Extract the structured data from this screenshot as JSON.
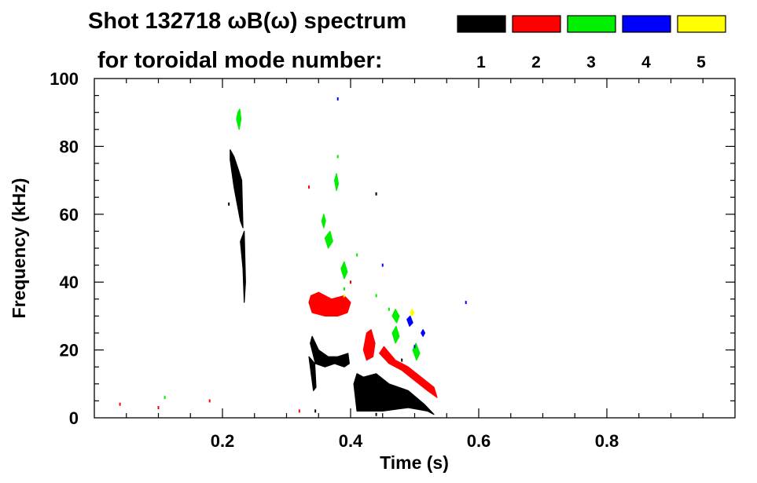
{
  "chart_data": {
    "type": "heatmap",
    "title": "Shot 132718 ωB(ω) spectrum",
    "subtitle": "for toroidal mode number:",
    "xlabel": "Time (s)",
    "ylabel": "Frequency (kHz)",
    "xlim": [
      0.0,
      1.0
    ],
    "ylim": [
      0,
      100
    ],
    "x_ticks": [
      {
        "value": 0.2,
        "label": "0.2"
      },
      {
        "value": 0.4,
        "label": "0.4"
      },
      {
        "value": 0.6,
        "label": "0.6"
      },
      {
        "value": 0.8,
        "label": "0.8"
      }
    ],
    "y_ticks": [
      {
        "value": 0,
        "label": "0"
      },
      {
        "value": 20,
        "label": "20"
      },
      {
        "value": 40,
        "label": "40"
      },
      {
        "value": 60,
        "label": "60"
      },
      {
        "value": 80,
        "label": "80"
      },
      {
        "value": 100,
        "label": "100"
      }
    ],
    "legend": [
      {
        "label": "1",
        "color": "#000000"
      },
      {
        "label": "2",
        "color": "#ff0000"
      },
      {
        "label": "3",
        "color": "#00ee00"
      },
      {
        "label": "4",
        "color": "#0000ff"
      },
      {
        "label": "5",
        "color": "#ffff00"
      }
    ],
    "legend_placement": "top-right",
    "grid": false,
    "regions": [
      {
        "mode": "1",
        "points": [
          [
            0.212,
            76
          ],
          [
            0.218,
            68
          ],
          [
            0.222,
            64
          ],
          [
            0.225,
            61
          ],
          [
            0.228,
            58
          ],
          [
            0.232,
            56
          ],
          [
            0.23,
            70
          ],
          [
            0.225,
            73
          ],
          [
            0.218,
            77
          ],
          [
            0.212,
            79
          ]
        ]
      },
      {
        "mode": "1",
        "points": [
          [
            0.228,
            52
          ],
          [
            0.232,
            44
          ],
          [
            0.234,
            34
          ],
          [
            0.236,
            40
          ],
          [
            0.234,
            55
          ]
        ]
      },
      {
        "mode": "1",
        "points": [
          [
            0.337,
            22
          ],
          [
            0.345,
            16
          ],
          [
            0.36,
            15
          ],
          [
            0.375,
            16
          ],
          [
            0.39,
            15
          ],
          [
            0.398,
            16
          ],
          [
            0.396,
            19
          ],
          [
            0.38,
            18
          ],
          [
            0.365,
            18
          ],
          [
            0.35,
            20
          ],
          [
            0.34,
            24
          ]
        ]
      },
      {
        "mode": "1",
        "points": [
          [
            0.335,
            18
          ],
          [
            0.342,
            8
          ],
          [
            0.346,
            9
          ],
          [
            0.344,
            16
          ]
        ]
      },
      {
        "mode": "1",
        "points": [
          [
            0.405,
            10
          ],
          [
            0.41,
            2
          ],
          [
            0.45,
            2
          ],
          [
            0.49,
            3
          ],
          [
            0.52,
            2
          ],
          [
            0.53,
            1
          ],
          [
            0.515,
            4
          ],
          [
            0.49,
            8
          ],
          [
            0.46,
            10
          ],
          [
            0.44,
            13
          ],
          [
            0.42,
            12
          ],
          [
            0.41,
            13
          ]
        ]
      },
      {
        "mode": "2",
        "points": [
          [
            0.335,
            34
          ],
          [
            0.34,
            31
          ],
          [
            0.36,
            30
          ],
          [
            0.38,
            30
          ],
          [
            0.395,
            31
          ],
          [
            0.4,
            34
          ],
          [
            0.39,
            36
          ],
          [
            0.37,
            35
          ],
          [
            0.35,
            37
          ],
          [
            0.338,
            36
          ]
        ]
      },
      {
        "mode": "2",
        "points": [
          [
            0.42,
            20
          ],
          [
            0.425,
            17
          ],
          [
            0.435,
            18
          ],
          [
            0.438,
            22
          ],
          [
            0.432,
            26
          ],
          [
            0.425,
            25
          ]
        ]
      },
      {
        "mode": "2",
        "points": [
          [
            0.445,
            19
          ],
          [
            0.46,
            16
          ],
          [
            0.48,
            14
          ],
          [
            0.5,
            11
          ],
          [
            0.52,
            8
          ],
          [
            0.535,
            6
          ],
          [
            0.53,
            9
          ],
          [
            0.51,
            12
          ],
          [
            0.49,
            15
          ],
          [
            0.47,
            17
          ],
          [
            0.452,
            21
          ]
        ]
      },
      {
        "mode": "3",
        "points": [
          [
            0.222,
            88
          ],
          [
            0.226,
            85
          ],
          [
            0.229,
            88
          ],
          [
            0.227,
            91
          ],
          [
            0.224,
            90
          ]
        ]
      },
      {
        "mode": "3",
        "points": [
          [
            0.36,
            53
          ],
          [
            0.365,
            50
          ],
          [
            0.372,
            52
          ],
          [
            0.368,
            55
          ]
        ]
      },
      {
        "mode": "3",
        "points": [
          [
            0.385,
            44
          ],
          [
            0.39,
            41
          ],
          [
            0.395,
            43
          ],
          [
            0.39,
            46
          ]
        ]
      },
      {
        "mode": "3",
        "points": [
          [
            0.465,
            25
          ],
          [
            0.47,
            22
          ],
          [
            0.476,
            24
          ],
          [
            0.471,
            27
          ]
        ]
      },
      {
        "mode": "3",
        "points": [
          [
            0.497,
            20
          ],
          [
            0.503,
            17
          ],
          [
            0.508,
            19
          ],
          [
            0.502,
            22
          ]
        ]
      },
      {
        "mode": "3",
        "points": [
          [
            0.465,
            30
          ],
          [
            0.472,
            28
          ],
          [
            0.476,
            30
          ],
          [
            0.47,
            32
          ]
        ]
      },
      {
        "mode": "3",
        "points": [
          [
            0.375,
            70
          ],
          [
            0.378,
            67
          ],
          [
            0.381,
            69
          ],
          [
            0.378,
            72
          ]
        ]
      },
      {
        "mode": "3",
        "points": [
          [
            0.355,
            58
          ],
          [
            0.358,
            56
          ],
          [
            0.361,
            58
          ],
          [
            0.358,
            60
          ]
        ]
      },
      {
        "mode": "4",
        "points": [
          [
            0.488,
            29
          ],
          [
            0.492,
            27
          ],
          [
            0.497,
            28
          ],
          [
            0.493,
            30
          ]
        ]
      },
      {
        "mode": "4",
        "points": [
          [
            0.51,
            25
          ],
          [
            0.513,
            24
          ],
          [
            0.516,
            25
          ],
          [
            0.513,
            26
          ]
        ]
      },
      {
        "mode": "5",
        "points": [
          [
            0.493,
            31
          ],
          [
            0.496,
            30
          ],
          [
            0.499,
            31
          ],
          [
            0.496,
            32
          ]
        ]
      }
    ],
    "specks": [
      {
        "mode": "1",
        "x": 0.21,
        "y": 63
      },
      {
        "mode": "1",
        "x": 0.345,
        "y": 2
      },
      {
        "mode": "1",
        "x": 0.44,
        "y": 66
      },
      {
        "mode": "1",
        "x": 0.48,
        "y": 17
      },
      {
        "mode": "1",
        "x": 0.44,
        "y": 1
      },
      {
        "mode": "2",
        "x": 0.04,
        "y": 4
      },
      {
        "mode": "2",
        "x": 0.1,
        "y": 3
      },
      {
        "mode": "2",
        "x": 0.18,
        "y": 5
      },
      {
        "mode": "2",
        "x": 0.32,
        "y": 2
      },
      {
        "mode": "2",
        "x": 0.335,
        "y": 68
      },
      {
        "mode": "2",
        "x": 0.4,
        "y": 40
      },
      {
        "mode": "3",
        "x": 0.11,
        "y": 6
      },
      {
        "mode": "3",
        "x": 0.38,
        "y": 77
      },
      {
        "mode": "3",
        "x": 0.39,
        "y": 38
      },
      {
        "mode": "3",
        "x": 0.41,
        "y": 48
      },
      {
        "mode": "3",
        "x": 0.44,
        "y": 36
      },
      {
        "mode": "3",
        "x": 0.46,
        "y": 32
      },
      {
        "mode": "4",
        "x": 0.38,
        "y": 94
      },
      {
        "mode": "4",
        "x": 0.45,
        "y": 45
      },
      {
        "mode": "4",
        "x": 0.58,
        "y": 34
      },
      {
        "mode": "4",
        "x": 0.5,
        "y": 21
      },
      {
        "mode": "5",
        "x": 0.39,
        "y": 36
      }
    ]
  }
}
